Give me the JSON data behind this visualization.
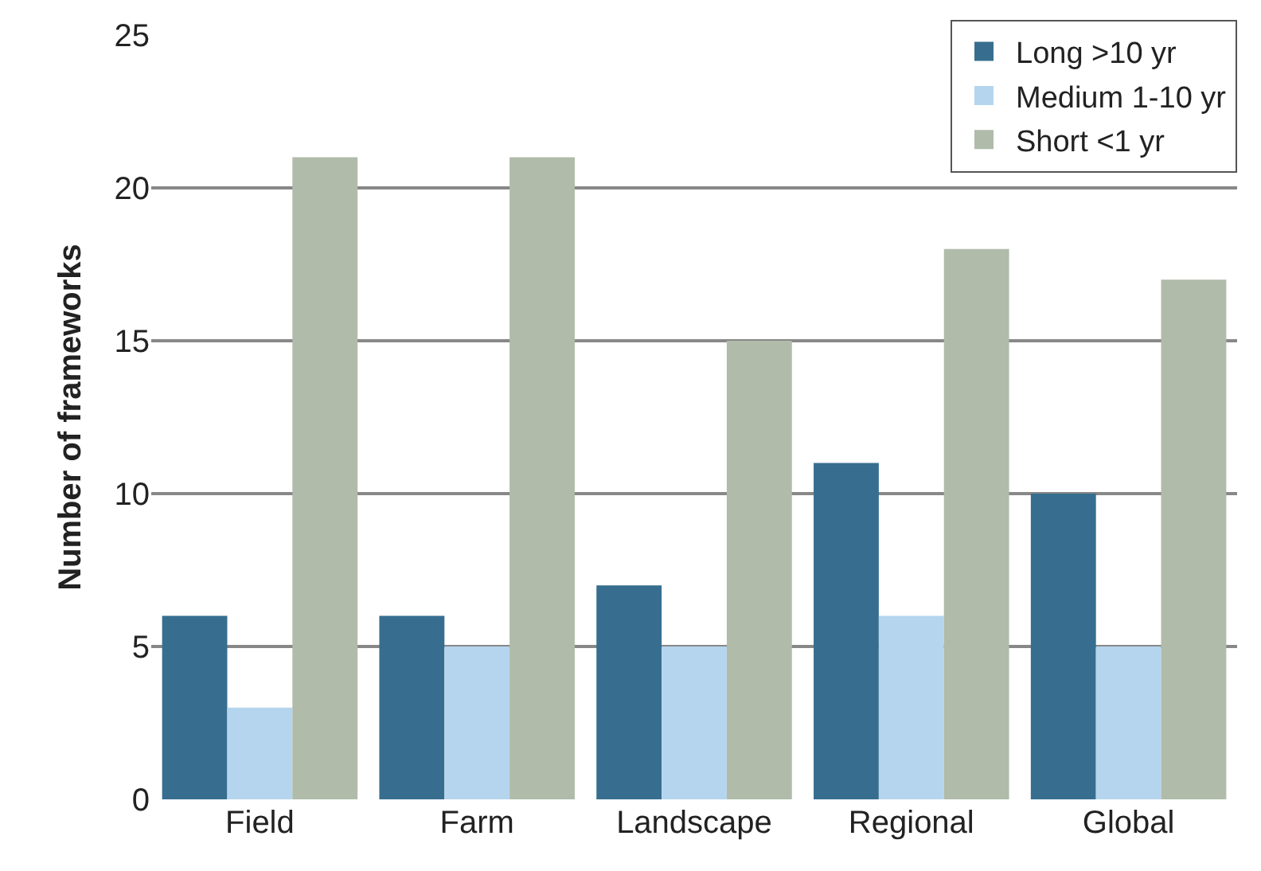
{
  "chart_data": {
    "type": "bar",
    "ylabel": "Number of frameworks",
    "categories": [
      "Field",
      "Farm",
      "Landscape",
      "Regional",
      "Global"
    ],
    "series": [
      {
        "name": "Long >10 yr",
        "color": "#376e8f",
        "values": [
          6,
          6,
          7,
          11,
          10
        ]
      },
      {
        "name": "Medium 1-10 yr",
        "color": "#b5d5ee",
        "values": [
          3,
          5,
          5,
          6,
          5
        ]
      },
      {
        "name": "Short <1 yr",
        "color": "#b0bbaa",
        "values": [
          21,
          21,
          15,
          18,
          17
        ]
      }
    ],
    "ylim": [
      0,
      25
    ],
    "yticks": [
      0,
      5,
      10,
      15,
      20,
      25
    ],
    "grid": "y",
    "legend": "top right"
  }
}
